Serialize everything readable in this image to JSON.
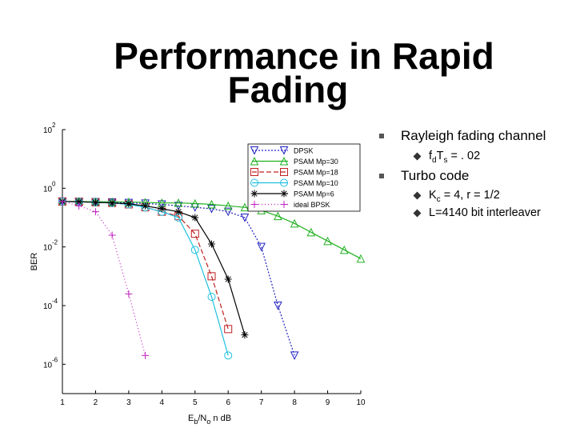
{
  "slide": {
    "title_line1": "Performance in Rapid",
    "title_line2": "Fading"
  },
  "bullets": [
    {
      "text": "Rayleigh fading channel",
      "sub": [
        {
          "pre": "f",
          "sub1": "d",
          "mid": "T",
          "sub2": "s",
          "post": " = . 02"
        }
      ]
    },
    {
      "text": "Turbo code",
      "sub": [
        {
          "pre": "K",
          "sub1": "c",
          "post": " = 4, r = 1/2"
        },
        {
          "pre": "L=4140 bit interleaver"
        }
      ]
    }
  ],
  "chart_data": {
    "type": "line",
    "xlabel_main": "E",
    "xlabel_sub1": "b",
    "xlabel_mid": "/N",
    "xlabel_sub2": "o",
    "xlabel_post": " n dB",
    "ylabel": "BER",
    "xlim": [
      1,
      10
    ],
    "ylim_log10": [
      -7,
      2
    ],
    "x_ticks": [
      "1",
      "2",
      "3",
      "4",
      "5",
      "6",
      "7",
      "8",
      "9",
      "10"
    ],
    "y_ticks": [
      {
        "base": "10",
        "exp": "2",
        "v": 2
      },
      {
        "base": "10",
        "exp": "0",
        "v": 0
      },
      {
        "base": "10",
        "exp": "-2",
        "v": -2
      },
      {
        "base": "10",
        "exp": "-4",
        "v": -4
      },
      {
        "base": "10",
        "exp": "-6",
        "v": -6
      }
    ],
    "y_scale": "log",
    "legend_position": "top-right",
    "series": [
      {
        "name": "DPSK",
        "color": "#2020c0",
        "dash": "2,2",
        "marker": "triangle-down",
        "x": [
          1,
          1.5,
          2,
          2.5,
          3,
          3.5,
          4,
          4.5,
          5,
          5.5,
          6,
          6.5,
          7,
          7.5,
          8
        ],
        "log10_y": [
          -0.45,
          -0.46,
          -0.47,
          -0.48,
          -0.5,
          -0.52,
          -0.55,
          -0.6,
          -0.65,
          -0.7,
          -0.8,
          -1.0,
          -2.0,
          -4.0,
          -5.7
        ]
      },
      {
        "name": "PSAM Mp=30",
        "color": "#20b020",
        "dash": "",
        "marker": "triangle-up",
        "x": [
          1,
          1.5,
          2,
          2.5,
          3,
          3.5,
          4,
          4.5,
          5,
          5.5,
          6,
          6.5,
          7,
          7.5,
          8,
          8.5,
          9,
          9.5,
          10
        ],
        "log10_y": [
          -0.45,
          -0.45,
          -0.46,
          -0.46,
          -0.47,
          -0.48,
          -0.5,
          -0.5,
          -0.52,
          -0.55,
          -0.6,
          -0.65,
          -0.75,
          -0.95,
          -1.2,
          -1.5,
          -1.8,
          -2.1,
          -2.4
        ]
      },
      {
        "name": "PSAM Mp=18",
        "color": "#c02020",
        "dash": "6,3",
        "marker": "square",
        "x": [
          1,
          1.5,
          2,
          2.5,
          3,
          3.5,
          4,
          4.5,
          5,
          5.5,
          6
        ],
        "log10_y": [
          -0.45,
          -0.46,
          -0.48,
          -0.5,
          -0.55,
          -0.65,
          -0.8,
          -0.95,
          -1.55,
          -3.0,
          -4.8
        ]
      },
      {
        "name": "PSAM Mp=10",
        "color": "#20c0e0",
        "dash": "",
        "marker": "circle",
        "x": [
          1,
          1.5,
          2,
          2.5,
          3,
          3.5,
          4,
          4.5,
          5,
          5.5,
          6
        ],
        "log10_y": [
          -0.45,
          -0.46,
          -0.48,
          -0.5,
          -0.55,
          -0.65,
          -0.8,
          -1.0,
          -2.1,
          -3.7,
          -5.7
        ]
      },
      {
        "name": "PSAM Mp=6",
        "color": "#000000",
        "dash": "",
        "marker": "star",
        "x": [
          1,
          1.5,
          2,
          2.5,
          3,
          3.5,
          4,
          4.5,
          5,
          5.5,
          6,
          6.5
        ],
        "log10_y": [
          -0.45,
          -0.46,
          -0.48,
          -0.5,
          -0.53,
          -0.6,
          -0.7,
          -0.8,
          -1.0,
          -1.9,
          -3.1,
          -5.0
        ]
      },
      {
        "name": "ideal BPSK",
        "color": "#c020c0",
        "dash": "1,3",
        "marker": "plus",
        "x": [
          1,
          1.5,
          2,
          2.5,
          3,
          3.5
        ],
        "log10_y": [
          -0.45,
          -0.6,
          -0.8,
          -1.6,
          -3.6,
          -5.7
        ]
      }
    ]
  }
}
